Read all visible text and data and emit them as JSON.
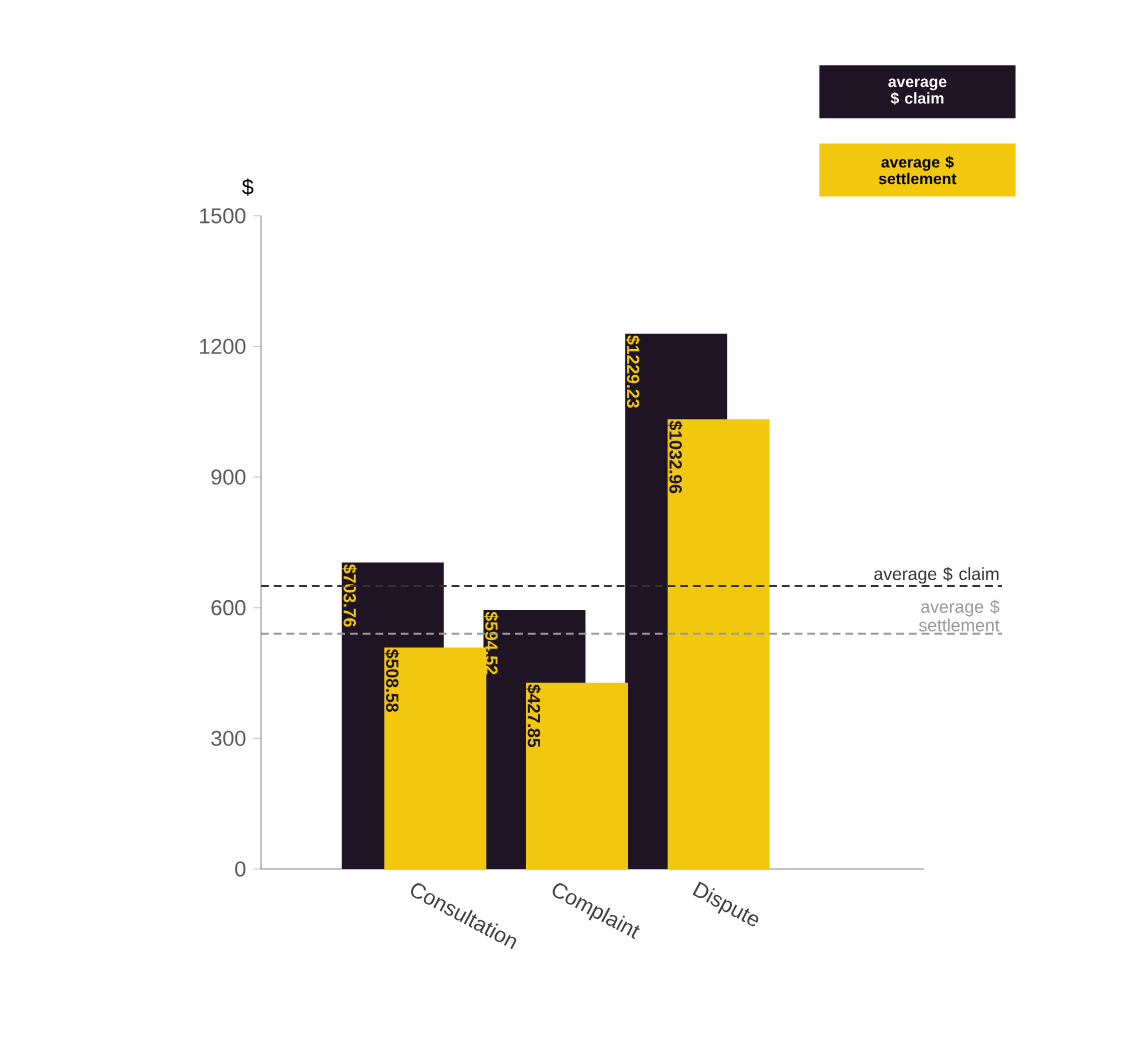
{
  "chart_data": {
    "type": "bar",
    "ylabel": "$",
    "categories": [
      "Consultation",
      "Complaint",
      "Dispute"
    ],
    "series": [
      {
        "name": "average $ claim",
        "color": "#1e1424",
        "values": [
          703.76,
          594.52,
          1229.23
        ],
        "value_labels": [
          "$703.76",
          "$594.52",
          "$1229.23"
        ]
      },
      {
        "name": "average $ settlement",
        "color": "#f2c80f",
        "values": [
          508.58,
          427.85,
          1032.96
        ],
        "value_labels": [
          "$508.58",
          "$427.85",
          "$1032.96"
        ]
      }
    ],
    "ylim": [
      0,
      1500
    ],
    "yticks": [
      0,
      300,
      600,
      900,
      1200,
      1500
    ],
    "ref_lines": [
      {
        "axis": "y",
        "value": 650,
        "label": "average $ claim",
        "color": "#333333",
        "line_style": "dashed"
      },
      {
        "axis": "y",
        "value": 540,
        "label": "average $ settlement",
        "color": "#999999",
        "line_style": "dashed"
      }
    ],
    "legend": "top right",
    "grid": false
  }
}
